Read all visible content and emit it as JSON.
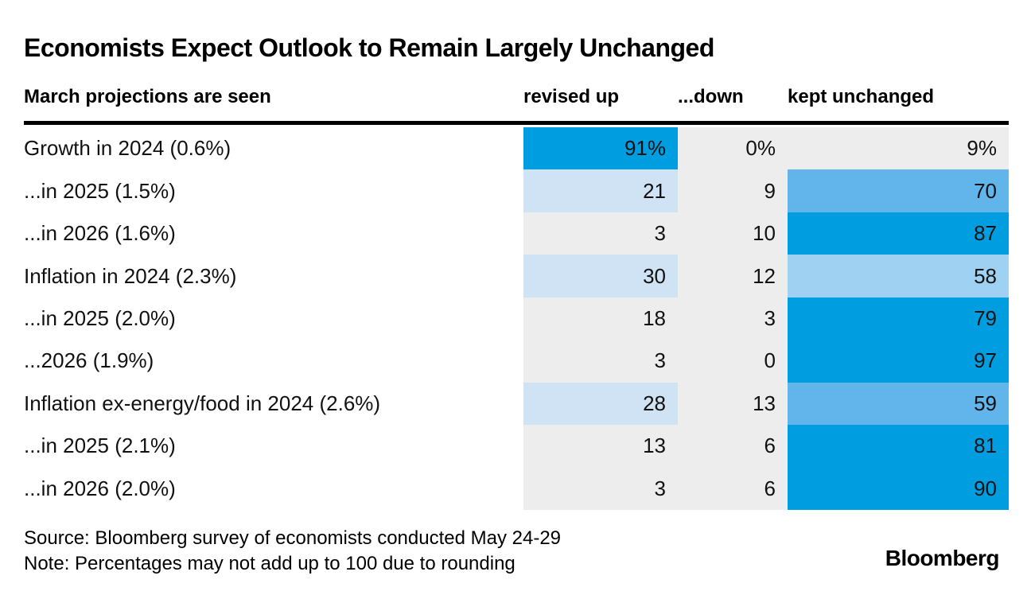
{
  "page": {
    "title": "Economists Expect Outlook to Remain Largely Unchanged"
  },
  "chart_data": {
    "type": "heatmap",
    "title": "Economists Expect Outlook to Remain Largely Unchanged",
    "row_axis_label": "March projections are seen",
    "columns": [
      "revised up",
      "...down",
      "kept unchanged"
    ],
    "units": "percent of surveyed economists",
    "rows": [
      {
        "label": "Growth in 2024 (0.6%)",
        "display": [
          "91%",
          "0%",
          "9%"
        ],
        "values": [
          91,
          0,
          9
        ],
        "levels": [
          "dark",
          "gray",
          "gray"
        ]
      },
      {
        "label": "...in 2025 (1.5%)",
        "display": [
          "21",
          "9",
          "70"
        ],
        "values": [
          21,
          9,
          70
        ],
        "levels": [
          "light",
          "gray",
          "medium"
        ]
      },
      {
        "label": "...in 2026 (1.6%)",
        "display": [
          "3",
          "10",
          "87"
        ],
        "values": [
          3,
          10,
          87
        ],
        "levels": [
          "gray",
          "gray",
          "dark"
        ]
      },
      {
        "label": "Inflation in 2024 (2.3%)",
        "display": [
          "30",
          "12",
          "58"
        ],
        "values": [
          30,
          12,
          58
        ],
        "levels": [
          "light",
          "gray",
          "medium_light"
        ]
      },
      {
        "label": "...in 2025 (2.0%)",
        "display": [
          "18",
          "3",
          "79"
        ],
        "values": [
          18,
          3,
          79
        ],
        "levels": [
          "gray",
          "gray",
          "dark"
        ]
      },
      {
        "label": "...2026 (1.9%)",
        "display": [
          "3",
          "0",
          "97"
        ],
        "values": [
          3,
          0,
          97
        ],
        "levels": [
          "gray",
          "gray",
          "dark"
        ]
      },
      {
        "label": "Inflation ex-energy/food in 2024 (2.6%)",
        "display": [
          "28",
          "13",
          "59"
        ],
        "values": [
          28,
          13,
          59
        ],
        "levels": [
          "light",
          "gray",
          "medium"
        ]
      },
      {
        "label": "...in 2025 (2.1%)",
        "display": [
          "13",
          "6",
          "81"
        ],
        "values": [
          13,
          6,
          81
        ],
        "levels": [
          "gray",
          "gray",
          "dark"
        ]
      },
      {
        "label": "...in 2026 (2.0%)",
        "display": [
          "3",
          "6",
          "90"
        ],
        "values": [
          3,
          6,
          90
        ],
        "levels": [
          "gray",
          "gray",
          "dark"
        ]
      }
    ],
    "cell_color_scale": {
      "dark": "#009de0",
      "medium": "#62b5ea",
      "medium_light": "#9ed1f2",
      "light": "#cfe3f5",
      "gray": "#ededed"
    },
    "legend": "none",
    "grid": "off"
  },
  "footer": {
    "source": "Source: Bloomberg survey of economists conducted May 24-29",
    "note": "Note: Percentages may not add up to 100 due to rounding",
    "logo": "Bloomberg"
  }
}
